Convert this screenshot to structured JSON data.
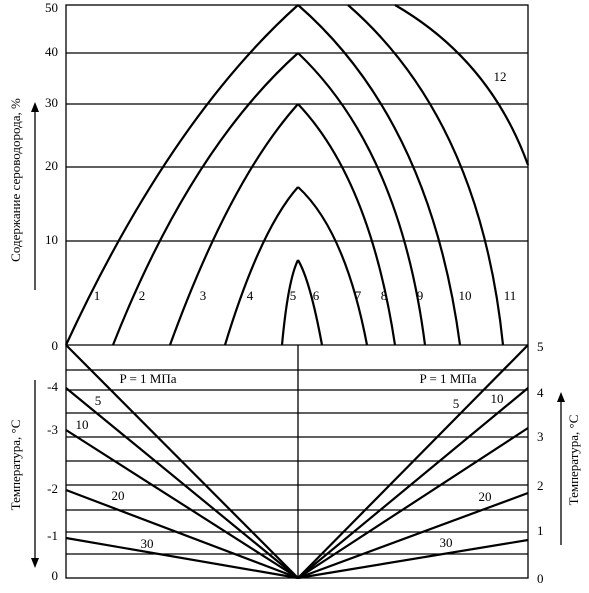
{
  "top": {
    "axis_label": "Содержание сероводорода, %",
    "ticks": [
      "50",
      "40",
      "30",
      "20",
      "10",
      "0"
    ],
    "curve_labels": [
      "1",
      "2",
      "3",
      "4",
      "5",
      "6",
      "7",
      "8",
      "9",
      "10",
      "11",
      "12"
    ]
  },
  "bottom": {
    "left_axis_label": "Температура, °С",
    "right_axis_label": "Температура, °С",
    "left_ticks": [
      "0",
      "-4",
      "-3",
      "-2",
      "-1",
      "0"
    ],
    "right_ticks": [
      "5",
      "4",
      "3",
      "2",
      "1",
      "0"
    ],
    "left_lines": [
      "P = 1 МПа",
      "5",
      "10",
      "20",
      "30"
    ],
    "right_lines": [
      "P = 1 МПа",
      "5",
      "10",
      "20",
      "30"
    ]
  }
}
